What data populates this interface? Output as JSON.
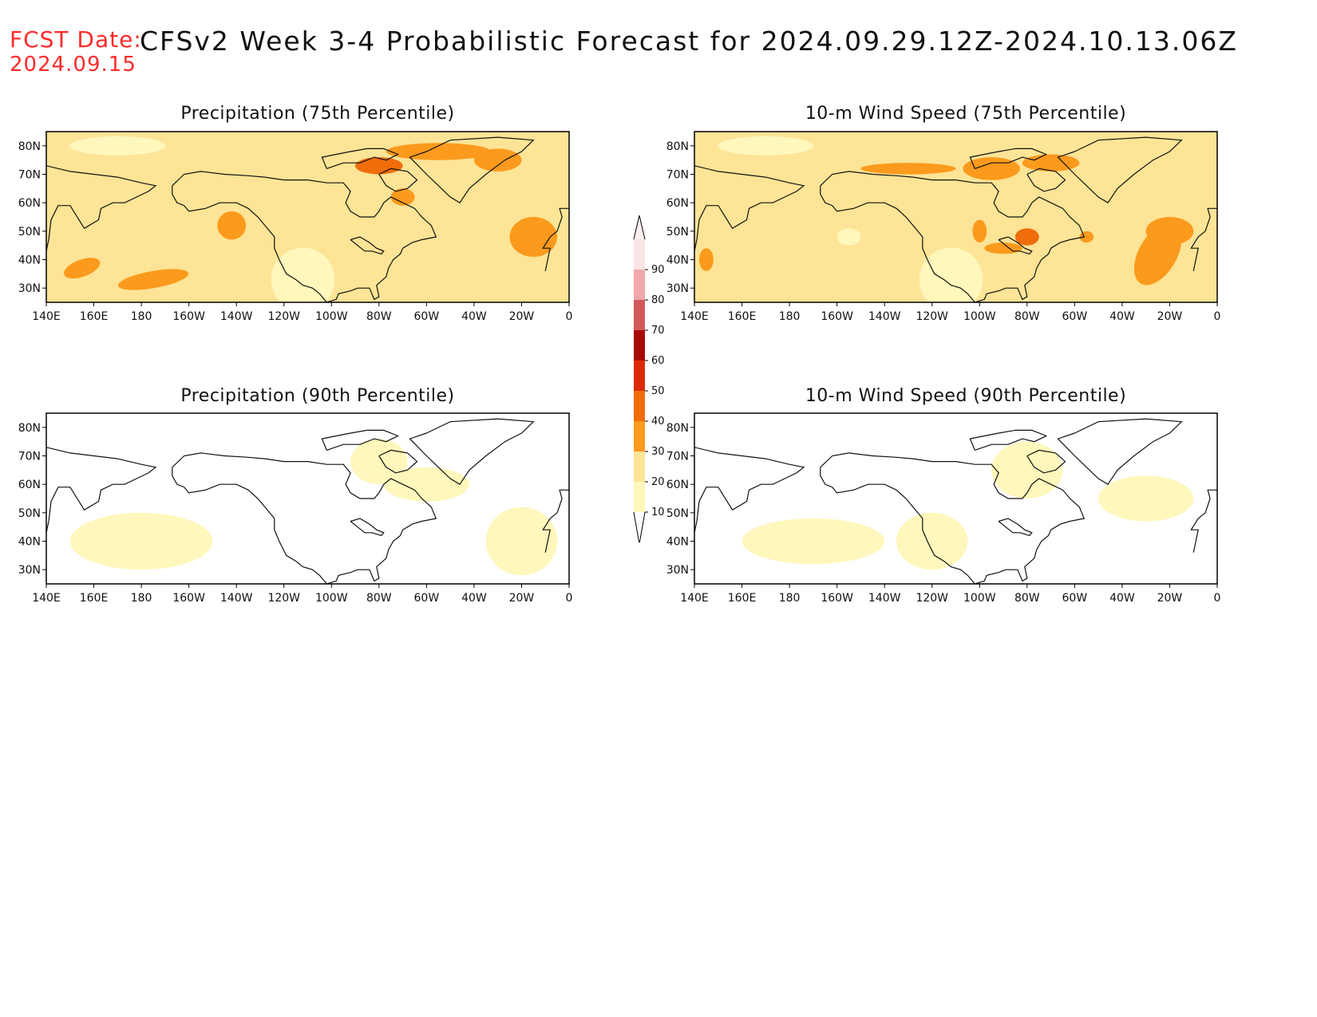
{
  "header": {
    "fcst_label": "FCST Date:",
    "fcst_date": "2024.09.15",
    "title": "CFSv2 Week 3-4 Probabilistic Forecast for 2024.09.29.12Z-2024.10.13.06Z"
  },
  "panels": [
    {
      "title": "Precipitation (75th Percentile)",
      "intensity": "high"
    },
    {
      "title": "10-m Wind Speed (75th Percentile)",
      "intensity": "high"
    },
    {
      "title": "Precipitation (90th Percentile)",
      "intensity": "low"
    },
    {
      "title": "10-m Wind Speed (90th Percentile)",
      "intensity": "low"
    }
  ],
  "axes": {
    "lat_labels": [
      "80N",
      "70N",
      "60N",
      "50N",
      "40N",
      "30N"
    ],
    "lon_labels": [
      "140E",
      "160E",
      "180",
      "160W",
      "140W",
      "120W",
      "100W",
      "80W",
      "60W",
      "40W",
      "20W",
      "0"
    ]
  },
  "colorbar": {
    "levels": [
      "10",
      "20",
      "30",
      "40",
      "50",
      "60",
      "70",
      "80",
      "90"
    ],
    "colors": [
      "#fff7bc",
      "#fde496",
      "#fb9a1c",
      "#f06d0c",
      "#db2b06",
      "#a80a06",
      "#d2585a",
      "#f0a8aa",
      "#fde4e4"
    ]
  }
}
